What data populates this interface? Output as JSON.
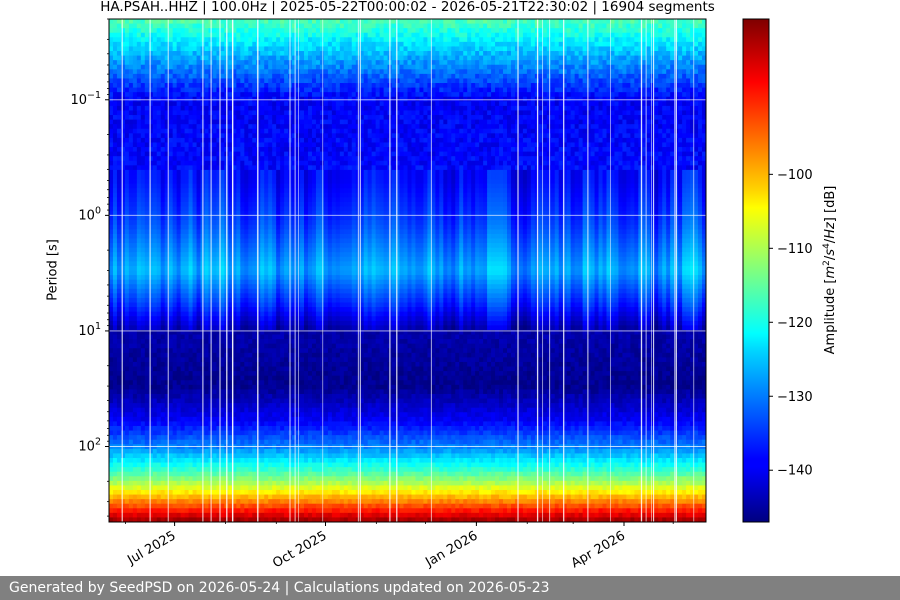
{
  "chart_data": {
    "type": "heatmap",
    "title": "HA.PSAH..HHZ | 100.0Hz | 2025-05-22T00:00:02 - 2026-05-21T22:30:02 | 16904 segments",
    "ylabel": "Period [s]",
    "colorbar_label": "Amplitude [m²/s⁴/Hz] [dB]",
    "x_tick_labels": [
      "Jul 2025",
      "Oct 2025",
      "Jan 2026",
      "Apr 2026"
    ],
    "x_ticks": [
      "2025-07-01",
      "2025-10-01",
      "2026-01-01",
      "2026-04-01"
    ],
    "xlim": [
      "2025-05-22",
      "2026-05-21"
    ],
    "y_scale": "log",
    "y_inverted": true,
    "y_tick_values": [
      0.1,
      1,
      10,
      100
    ],
    "y_tick_exponents": [
      "-1",
      "0",
      "1",
      "2"
    ],
    "ylim": [
      0.02,
      450
    ],
    "grid": true,
    "colormap": "jet",
    "clim": [
      -147,
      -79
    ],
    "colorbar_ticks": [
      -100,
      -110,
      -120,
      -130,
      -140
    ],
    "colorbar_tick_labels": [
      "−100",
      "−110",
      "−120",
      "−130",
      "−140"
    ],
    "period_profile_db": [
      {
        "period": 0.02,
        "db": -116
      },
      {
        "period": 0.03,
        "db": -122
      },
      {
        "period": 0.1,
        "db": -139
      },
      {
        "period": 0.5,
        "db": -138
      },
      {
        "period": 1.2,
        "db": -134
      },
      {
        "period": 3,
        "db": -127
      },
      {
        "period": 6,
        "db": -136
      },
      {
        "period": 10,
        "db": -144
      },
      {
        "period": 30,
        "db": -146
      },
      {
        "period": 60,
        "db": -139
      },
      {
        "period": 100,
        "db": -130
      },
      {
        "period": 160,
        "db": -118
      },
      {
        "period": 220,
        "db": -108
      },
      {
        "period": 300,
        "db": -96
      },
      {
        "period": 450,
        "db": -80
      }
    ]
  },
  "footer": "Generated by SeedPSD on 2026-05-24 | Calculations updated on 2026-05-23"
}
